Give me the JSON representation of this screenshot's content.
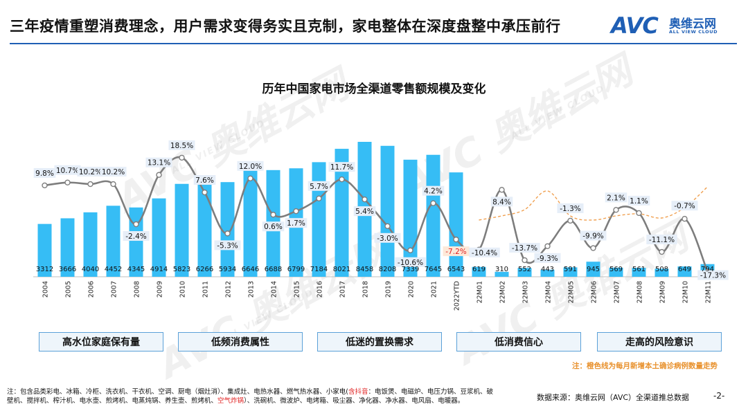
{
  "header": {
    "title": "三年疫情重塑消费理念，用户需求变得务实且克制，家电整体在深度盘整中承压前行",
    "logo_avc": "AVC",
    "logo_cn": "奥维云网",
    "logo_en": "ALL VIEW CLOUD"
  },
  "watermark": {
    "big": "AVC 奥维云网",
    "small": "ALL VIEW CLOUD"
  },
  "chart_data": {
    "type": "bar",
    "title": "历年中国家电市场全渠道零售额规模及变化",
    "categories": [
      "2004",
      "2005",
      "2006",
      "2007",
      "2008",
      "2009",
      "2010",
      "2011",
      "2012",
      "2013",
      "2014",
      "2015",
      "2016",
      "2017",
      "2018",
      "2019",
      "2020",
      "2021",
      "2022YTD",
      "22M01",
      "22M02",
      "22M03",
      "22M04",
      "22M05",
      "22M06",
      "22M07",
      "22M08",
      "22M09",
      "22M10",
      "22M11"
    ],
    "series": [
      {
        "name": "",
        "type": "bar",
        "values": [
          3312,
          3666,
          4040,
          4452,
          4345,
          4914,
          5823,
          6266,
          5934,
          6646,
          6688,
          6799,
          7184,
          8021,
          8458,
          8208,
          7339,
          7645,
          6543,
          619,
          310,
          552,
          443,
          591,
          945,
          569,
          561,
          508,
          649,
          794
        ]
      },
      {
        "name": "",
        "type": "line",
        "values": [
          9.8,
          10.7,
          10.2,
          10.2,
          -2.4,
          13.1,
          18.5,
          7.6,
          -5.3,
          12.0,
          0.6,
          1.7,
          5.7,
          11.7,
          5.4,
          -3.0,
          -10.6,
          4.2,
          -7.2,
          -10.4,
          8.4,
          -13.7,
          -9.3,
          -1.3,
          -9.9,
          2.1,
          1.1,
          -11.1,
          -0.7,
          -17.3
        ],
        "labels": [
          "9.8%",
          "10.7%",
          "10.2%",
          "10.2%",
          "-2.4%",
          "13.1%",
          "18.5%",
          "7.6%",
          "-5.3%",
          "12.0%",
          "0.6%",
          "1.7%",
          "5.7%",
          "11.7%",
          "5.4%",
          "-3.0%",
          "-10.6%",
          "4.2%",
          "-7.2%",
          "-10.4%",
          "8.4%",
          "-13.7%",
          "-9.3%",
          "-1.3%",
          "-9.9%",
          "2.1%",
          "1.1%",
          "-11.1%",
          "-0.7%",
          "-17.3%"
        ]
      },
      {
        "name": "每月新增本土确诊病例数量",
        "type": "line",
        "style": "dashed",
        "values": [
          null,
          null,
          null,
          null,
          null,
          null,
          null,
          null,
          null,
          null,
          null,
          null,
          null,
          null,
          null,
          null,
          null,
          null,
          null,
          0.2,
          0.3,
          0.45,
          0.9,
          0.3,
          0.2,
          0.3,
          0.35,
          0.25,
          0.5,
          1.0
        ]
      }
    ],
    "bar_ylim": [
      0,
      9000
    ],
    "line_ylim": [
      -30,
      40
    ],
    "grid": false,
    "colors": {
      "bar": "#36bdf5",
      "line": "#7d7d7d",
      "dashed": "#f0a050",
      "label_bg": "#e6eef8",
      "highlight_label_bg": "#fde9d9",
      "highlight_label_color": "#e02020"
    },
    "highlight_index": 18
  },
  "factors": [
    "高水位家庭保有量",
    "低频消费属性",
    "低迷的置换需求",
    "低消费信心",
    "走高的风险意识"
  ],
  "orange_note": "注：橙色线为每月新增本土确诊病例数量走势",
  "footnote": {
    "prefix": "注：包含品类彩电、冰箱、冷柜、洗衣机、干衣机、空调、厨电（烟灶消）、集成灶、电热水器、燃气热水器、小家电(",
    "hl1": "含抖音",
    "middle": "：电饭煲、电磁炉、电压力锅、豆浆机、破壁机、搅拌机、榨汁机、电水壶、煎烤机、电蒸炖锅、养生壶、煎烤机、",
    "hl2": "空气炸锅",
    "suffix": "）、洗碗机、微波炉、电烤箱、吸尘器、净化器、净水器、电风扇、电暖器。"
  },
  "source": "数据来源：奥维云网（AVC）全渠道推总数据",
  "page_number": "-2-"
}
